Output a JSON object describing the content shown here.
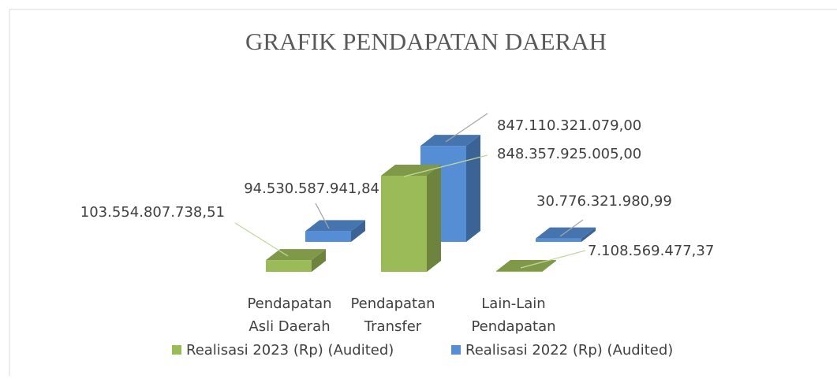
{
  "chart_data": {
    "type": "bar3d",
    "title": "GRAFIK PENDAPATAN DAERAH",
    "categories": [
      [
        "Pendapatan",
        "Asli Daerah"
      ],
      [
        "Pendapatan",
        "Transfer"
      ],
      [
        "Lain-Lain",
        "Pendapatan"
      ]
    ],
    "series": [
      {
        "name": "Realisasi 2023  (Rp) (Audited)",
        "color": "#9bbb59",
        "values": [
          103554807738.51,
          848357925005.0,
          7108569477.37
        ],
        "value_labels": [
          "103.554.807.738,51",
          "848.357.925.005,00",
          "7.108.569.477,37"
        ]
      },
      {
        "name": "Realisasi 2022 (Rp) (Audited)",
        "color": "#558ed5",
        "values": [
          94530587941.84,
          847110321079.0,
          30776321980.99
        ],
        "value_labels": [
          "94.530.587.941,84",
          "847.110.321.079,00",
          "30.776.321.980,99"
        ]
      }
    ]
  }
}
